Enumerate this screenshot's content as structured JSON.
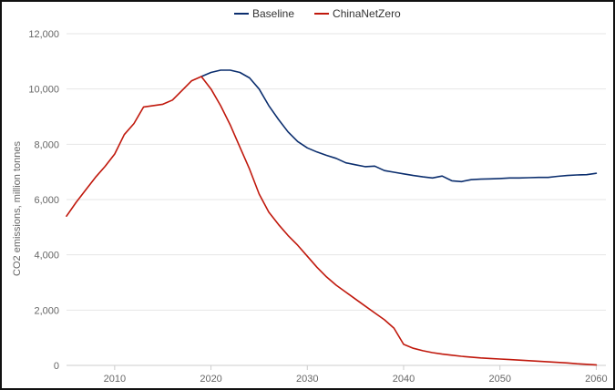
{
  "chart_data": {
    "type": "line",
    "xlabel": "",
    "ylabel": "CO2 emissions, million tonnes",
    "xlim": [
      2005,
      2061
    ],
    "ylim": [
      0,
      12000
    ],
    "x_ticks": [
      "2010",
      "2020",
      "2030",
      "2040",
      "2050",
      "2060"
    ],
    "y_ticks": [
      "0",
      "2,000",
      "4,000",
      "6,000",
      "8,000",
      "10,000",
      "12,000"
    ],
    "grid": "horizontal",
    "legend_position": "top-center",
    "series": [
      {
        "name": "Baseline",
        "color": "#0b2e6e",
        "x": [
          2019,
          2020,
          2021,
          2022,
          2023,
          2024,
          2025,
          2026,
          2027,
          2028,
          2029,
          2030,
          2031,
          2032,
          2033,
          2034,
          2035,
          2036,
          2037,
          2038,
          2039,
          2040,
          2041,
          2042,
          2043,
          2044,
          2045,
          2046,
          2047,
          2048,
          2049,
          2050,
          2051,
          2052,
          2053,
          2054,
          2055,
          2056,
          2057,
          2058,
          2059,
          2060
        ],
        "values": [
          10450,
          10600,
          10680,
          10680,
          10600,
          10400,
          10000,
          9400,
          8900,
          8450,
          8100,
          7870,
          7720,
          7600,
          7490,
          7330,
          7260,
          7190,
          7210,
          7050,
          6990,
          6930,
          6870,
          6820,
          6780,
          6850,
          6680,
          6650,
          6720,
          6740,
          6750,
          6760,
          6780,
          6780,
          6790,
          6800,
          6800,
          6840,
          6870,
          6890,
          6900,
          6950
        ]
      },
      {
        "name": "ChinaNetZero",
        "color": "#c0180c",
        "x": [
          2005,
          2006,
          2007,
          2008,
          2009,
          2010,
          2011,
          2012,
          2013,
          2014,
          2015,
          2016,
          2017,
          2018,
          2019,
          2020,
          2021,
          2022,
          2023,
          2024,
          2025,
          2026,
          2027,
          2028,
          2029,
          2030,
          2031,
          2032,
          2033,
          2034,
          2035,
          2036,
          2037,
          2038,
          2039,
          2040,
          2041,
          2042,
          2043,
          2044,
          2045,
          2046,
          2047,
          2048,
          2049,
          2050,
          2051,
          2052,
          2053,
          2054,
          2055,
          2056,
          2057,
          2058,
          2059,
          2060
        ],
        "values": [
          5400,
          5900,
          6350,
          6800,
          7200,
          7650,
          8350,
          8750,
          9350,
          9400,
          9450,
          9600,
          9950,
          10300,
          10450,
          10000,
          9400,
          8700,
          7900,
          7100,
          6200,
          5550,
          5100,
          4700,
          4350,
          3950,
          3550,
          3200,
          2900,
          2650,
          2400,
          2150,
          1900,
          1650,
          1350,
          760,
          620,
          530,
          460,
          410,
          370,
          330,
          300,
          270,
          250,
          230,
          210,
          190,
          170,
          150,
          130,
          110,
          90,
          60,
          40,
          20
        ]
      }
    ]
  }
}
